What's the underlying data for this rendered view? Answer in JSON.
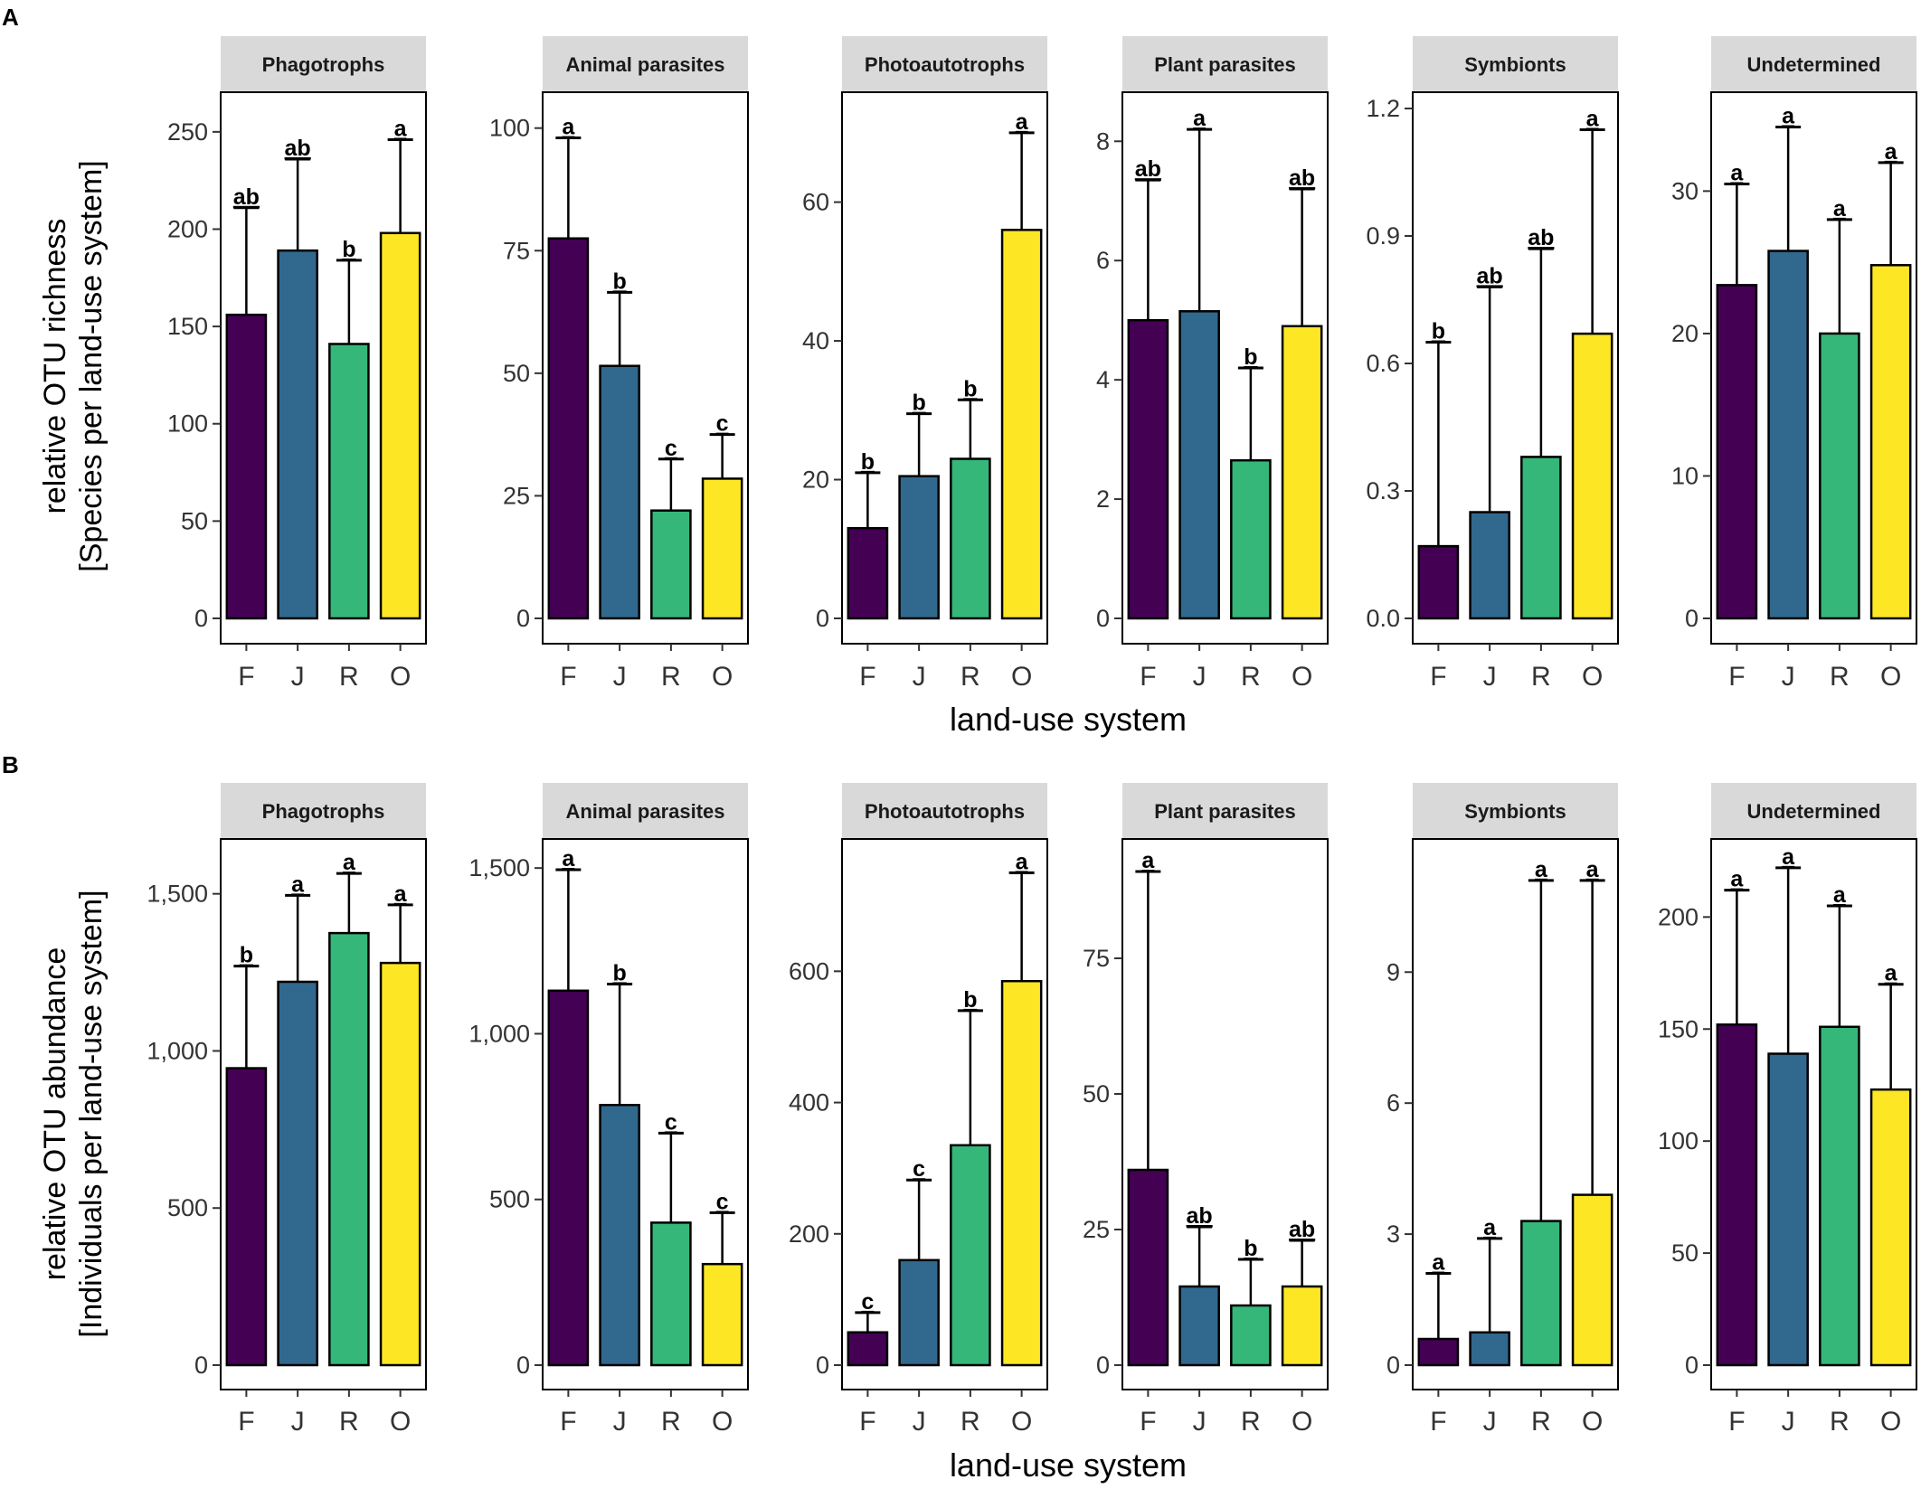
{
  "colors": {
    "F": "#440154",
    "J": "#31688e",
    "R": "#35b779",
    "O": "#fde725",
    "strip_bg": "#d9d9d9",
    "frame": "#000000"
  },
  "x_axis_title": "land-use system",
  "chart_data": [
    {
      "panel": "A",
      "type": "bar",
      "ylabel_line1": "relative OTU richness",
      "ylabel_line2": "[Species per land-use system]",
      "xlabel": "land-use system",
      "categories": [
        "F",
        "J",
        "R",
        "O"
      ],
      "facets": [
        {
          "title": "Phagotrophs",
          "ylim": [
            0,
            262
          ],
          "ticks": [
            0,
            50,
            100,
            150,
            200,
            250
          ],
          "tick_labels": [
            "0",
            "50",
            "100",
            "150",
            "200",
            "250"
          ],
          "values": [
            156,
            189,
            141,
            198
          ],
          "err_upper": [
            211,
            236,
            184,
            246
          ],
          "letters": [
            "ab",
            "ab",
            "b",
            "a"
          ]
        },
        {
          "title": "Animal parasites",
          "ylim": [
            0,
            104
          ],
          "ticks": [
            0,
            25,
            50,
            75,
            100
          ],
          "tick_labels": [
            "0",
            "25",
            "50",
            "75",
            "100"
          ],
          "values": [
            77.5,
            51.5,
            22,
            28.5
          ],
          "err_upper": [
            98,
            66.5,
            32.5,
            37.5
          ],
          "letters": [
            "a",
            "b",
            "c",
            "c"
          ]
        },
        {
          "title": "Photoautotrophs",
          "ylim": [
            0,
            73.5
          ],
          "ticks": [
            0,
            20,
            40,
            60
          ],
          "tick_labels": [
            "0",
            "20",
            "40",
            "60"
          ],
          "values": [
            13,
            20.5,
            23,
            56
          ],
          "err_upper": [
            21,
            29.5,
            31.5,
            70
          ],
          "letters": [
            "b",
            "b",
            "b",
            "a"
          ]
        },
        {
          "title": "Plant parasites",
          "ylim": [
            0,
            8.55
          ],
          "ticks": [
            0,
            2,
            4,
            6,
            8
          ],
          "tick_labels": [
            "0",
            "2",
            "4",
            "6",
            "8"
          ],
          "values": [
            5,
            5.15,
            2.65,
            4.9
          ],
          "err_upper": [
            7.35,
            8.2,
            4.2,
            7.2
          ],
          "letters": [
            "ab",
            "a",
            "b",
            "ab"
          ]
        },
        {
          "title": "Symbionts",
          "ylim": [
            0,
            1.2
          ],
          "ticks": [
            0,
            0.3,
            0.6,
            0.9,
            1.2
          ],
          "tick_labels": [
            "0.0",
            "0.3",
            "0.6",
            "0.9",
            "1.2"
          ],
          "values": [
            0.17,
            0.25,
            0.38,
            0.67
          ],
          "err_upper": [
            0.65,
            0.78,
            0.87,
            1.15
          ],
          "letters": [
            "b",
            "ab",
            "ab",
            "a"
          ]
        },
        {
          "title": "Undetermined",
          "ylim": [
            0,
            35.8
          ],
          "ticks": [
            0,
            10,
            20,
            30
          ],
          "tick_labels": [
            "0",
            "10",
            "20",
            "30"
          ],
          "values": [
            23.4,
            25.8,
            20,
            24.8
          ],
          "err_upper": [
            30.5,
            34.5,
            28,
            32
          ],
          "letters": [
            "a",
            "a",
            "a",
            "a"
          ]
        }
      ]
    },
    {
      "panel": "B",
      "type": "bar",
      "ylabel_line1": "relative OTU abundance",
      "ylabel_line2": "[Individuals per land-use system]",
      "xlabel": "land-use system",
      "categories": [
        "F",
        "J",
        "R",
        "O"
      ],
      "facets": [
        {
          "title": "Phagotrophs",
          "ylim": [
            0,
            1640
          ],
          "ticks": [
            0,
            500,
            1000,
            1500
          ],
          "tick_labels": [
            "0",
            "500",
            "1,000",
            "1,500"
          ],
          "values": [
            945,
            1220,
            1375,
            1280
          ],
          "err_upper": [
            1270,
            1495,
            1565,
            1465
          ],
          "letters": [
            "b",
            "a",
            "a",
            "a"
          ]
        },
        {
          "title": "Animal parasites",
          "ylim": [
            0,
            1555
          ],
          "ticks": [
            0,
            500,
            1000,
            1500
          ],
          "tick_labels": [
            "0",
            "500",
            "1,000",
            "1,500"
          ],
          "values": [
            1130,
            785,
            430,
            305
          ],
          "err_upper": [
            1495,
            1150,
            700,
            460
          ],
          "letters": [
            "a",
            "b",
            "c",
            "c"
          ]
        },
        {
          "title": "Photoautotrophs",
          "ylim": [
            0,
            785
          ],
          "ticks": [
            0,
            200,
            400,
            600
          ],
          "tick_labels": [
            "0",
            "200",
            "400",
            "600"
          ],
          "values": [
            50,
            160,
            335,
            585
          ],
          "err_upper": [
            80,
            282,
            540,
            750
          ],
          "letters": [
            "c",
            "c",
            "b",
            "a"
          ]
        },
        {
          "title": "Plant parasites",
          "ylim": [
            0,
            95
          ],
          "ticks": [
            0,
            25,
            50,
            75
          ],
          "tick_labels": [
            "0",
            "25",
            "50",
            "75"
          ],
          "values": [
            36,
            14.5,
            11,
            14.5
          ],
          "err_upper": [
            91,
            25.5,
            19.5,
            23
          ],
          "letters": [
            "a",
            "ab",
            "b",
            "ab"
          ]
        },
        {
          "title": "Symbionts",
          "ylim": [
            0,
            11.8
          ],
          "ticks": [
            0,
            3,
            6,
            9
          ],
          "tick_labels": [
            "0",
            "3",
            "6",
            "9"
          ],
          "values": [
            0.6,
            0.75,
            3.3,
            3.9
          ],
          "err_upper": [
            2.1,
            2.9,
            11.1,
            11.1
          ],
          "letters": [
            "a",
            "a",
            "a",
            "a"
          ]
        },
        {
          "title": "Undetermined",
          "ylim": [
            0,
            230
          ],
          "ticks": [
            0,
            50,
            100,
            150,
            200
          ],
          "tick_labels": [
            "0",
            "50",
            "100",
            "150",
            "200"
          ],
          "values": [
            152,
            139,
            151,
            123
          ],
          "err_upper": [
            212,
            222,
            205,
            170
          ],
          "letters": [
            "a",
            "a",
            "a",
            "a"
          ]
        }
      ]
    }
  ]
}
